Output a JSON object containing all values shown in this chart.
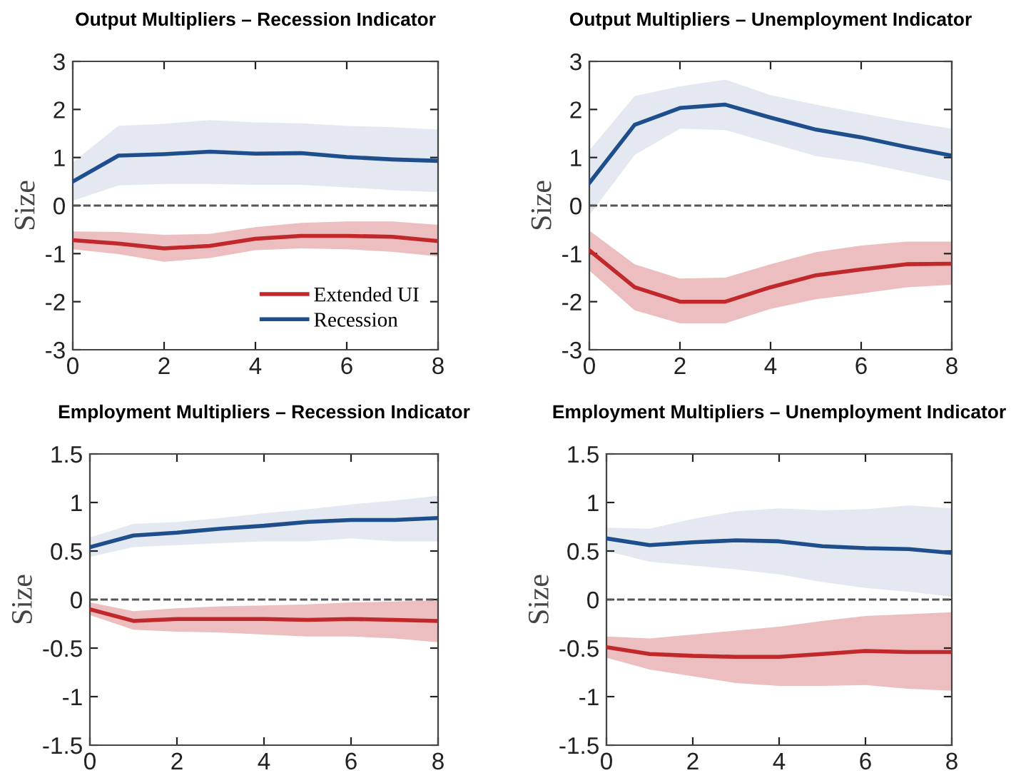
{
  "chart_data": [
    {
      "type": "line",
      "title": "Output Multipliers – Recession Indicator",
      "ylabel": "Size",
      "x": [
        0,
        1,
        2,
        3,
        4,
        5,
        6,
        7,
        8
      ],
      "xlim": [
        0,
        8
      ],
      "xticks": [
        0,
        2,
        4,
        6,
        8
      ],
      "ylim": [
        -3,
        3
      ],
      "yticks": [
        -3,
        -2,
        -1,
        0,
        1,
        2,
        3
      ],
      "grid": false,
      "legend": "bottom right",
      "marker": "none",
      "line_style": "solid",
      "ref_lines": [
        {
          "axis": "y",
          "value": 0,
          "color": "#555555",
          "line_style": "dashed"
        }
      ],
      "series": [
        {
          "name": "Extended UI",
          "color": "#c0282c",
          "values": [
            -0.72,
            -0.79,
            -0.89,
            -0.84,
            -0.69,
            -0.63,
            -0.63,
            -0.65,
            -0.74
          ],
          "upper": [
            -0.54,
            -0.55,
            -0.61,
            -0.59,
            -0.45,
            -0.36,
            -0.33,
            -0.33,
            -0.4
          ],
          "lower": [
            -0.91,
            -1.01,
            -1.17,
            -1.09,
            -0.93,
            -0.89,
            -0.91,
            -0.96,
            -1.06
          ]
        },
        {
          "name": "Recession",
          "color": "#1f4e8c",
          "values": [
            0.5,
            1.04,
            1.07,
            1.12,
            1.08,
            1.09,
            1.01,
            0.96,
            0.93
          ],
          "upper": [
            0.9,
            1.66,
            1.7,
            1.78,
            1.73,
            1.71,
            1.66,
            1.63,
            1.58
          ],
          "lower": [
            0.1,
            0.42,
            0.45,
            0.45,
            0.43,
            0.43,
            0.38,
            0.32,
            0.28
          ]
        }
      ]
    },
    {
      "type": "line",
      "title": "Output Multipliers – Unemployment Indicator",
      "ylabel": "Size",
      "x": [
        0,
        1,
        2,
        3,
        4,
        5,
        6,
        7,
        8
      ],
      "xlim": [
        0,
        8
      ],
      "xticks": [
        0,
        2,
        4,
        6,
        8
      ],
      "ylim": [
        -3,
        3
      ],
      "yticks": [
        -3,
        -2,
        -1,
        0,
        1,
        2,
        3
      ],
      "grid": false,
      "marker": "none",
      "line_style": "solid",
      "ref_lines": [
        {
          "axis": "y",
          "value": 0,
          "color": "#555555",
          "line_style": "dashed"
        }
      ],
      "series": [
        {
          "color": "#c0282c",
          "values": [
            -0.93,
            -1.7,
            -2.0,
            -2.0,
            -1.7,
            -1.45,
            -1.33,
            -1.22,
            -1.21
          ],
          "upper": [
            -0.52,
            -1.22,
            -1.52,
            -1.5,
            -1.22,
            -0.97,
            -0.83,
            -0.75,
            -0.75
          ],
          "lower": [
            -1.35,
            -2.18,
            -2.45,
            -2.45,
            -2.15,
            -1.95,
            -1.83,
            -1.7,
            -1.65
          ]
        },
        {
          "color": "#1f4e8c",
          "values": [
            0.47,
            1.68,
            2.03,
            2.1,
            1.83,
            1.58,
            1.42,
            1.22,
            1.04
          ],
          "upper": [
            1.15,
            2.28,
            2.48,
            2.62,
            2.3,
            2.1,
            1.92,
            1.75,
            1.6
          ],
          "lower": [
            -0.2,
            1.05,
            1.6,
            1.57,
            1.3,
            1.03,
            0.9,
            0.7,
            0.5
          ]
        }
      ]
    },
    {
      "type": "line",
      "title": "Employment Multipliers – Recession Indicator",
      "ylabel": "Size",
      "x": [
        0,
        1,
        2,
        3,
        4,
        5,
        6,
        7,
        8
      ],
      "xlim": [
        0,
        8
      ],
      "xticks": [
        0,
        2,
        4,
        6,
        8
      ],
      "ylim": [
        -1.5,
        1.5
      ],
      "yticks": [
        -1.5,
        -1,
        -0.5,
        0,
        0.5,
        1,
        1.5
      ],
      "grid": false,
      "marker": "none",
      "line_style": "solid",
      "ref_lines": [
        {
          "axis": "y",
          "value": 0,
          "color": "#555555",
          "line_style": "dashed"
        }
      ],
      "series": [
        {
          "color": "#c0282c",
          "values": [
            -0.1,
            -0.22,
            -0.2,
            -0.2,
            -0.2,
            -0.21,
            -0.2,
            -0.21,
            -0.22
          ],
          "upper": [
            -0.03,
            -0.12,
            -0.09,
            -0.07,
            -0.06,
            -0.05,
            -0.03,
            -0.02,
            -0.01
          ],
          "lower": [
            -0.16,
            -0.31,
            -0.33,
            -0.34,
            -0.36,
            -0.38,
            -0.38,
            -0.4,
            -0.44
          ]
        },
        {
          "color": "#1f4e8c",
          "values": [
            0.54,
            0.66,
            0.69,
            0.73,
            0.76,
            0.8,
            0.82,
            0.82,
            0.84
          ],
          "upper": [
            0.64,
            0.78,
            0.8,
            0.84,
            0.89,
            0.93,
            0.98,
            1.02,
            1.07
          ],
          "lower": [
            0.44,
            0.54,
            0.56,
            0.58,
            0.6,
            0.6,
            0.63,
            0.6,
            0.6
          ]
        }
      ]
    },
    {
      "type": "line",
      "title": "Employment Multipliers – Unemployment Indicator",
      "ylabel": "Size",
      "x": [
        0,
        1,
        2,
        3,
        4,
        5,
        6,
        7,
        8
      ],
      "xlim": [
        0,
        8
      ],
      "xticks": [
        0,
        2,
        4,
        6,
        8
      ],
      "ylim": [
        -1.5,
        1.5
      ],
      "yticks": [
        -1.5,
        -1,
        -0.5,
        0,
        0.5,
        1,
        1.5
      ],
      "grid": false,
      "marker": "none",
      "line_style": "solid",
      "ref_lines": [
        {
          "axis": "y",
          "value": 0,
          "color": "#555555",
          "line_style": "dashed"
        }
      ],
      "series": [
        {
          "color": "#c0282c",
          "values": [
            -0.49,
            -0.56,
            -0.58,
            -0.59,
            -0.59,
            -0.56,
            -0.53,
            -0.54,
            -0.54
          ],
          "upper": [
            -0.38,
            -0.4,
            -0.36,
            -0.32,
            -0.28,
            -0.22,
            -0.17,
            -0.15,
            -0.13
          ],
          "lower": [
            -0.6,
            -0.72,
            -0.79,
            -0.86,
            -0.89,
            -0.89,
            -0.88,
            -0.92,
            -0.94
          ]
        },
        {
          "color": "#1f4e8c",
          "values": [
            0.63,
            0.56,
            0.59,
            0.61,
            0.6,
            0.55,
            0.53,
            0.52,
            0.48
          ],
          "upper": [
            0.74,
            0.73,
            0.83,
            0.91,
            0.94,
            0.92,
            0.93,
            0.97,
            0.94
          ],
          "lower": [
            0.5,
            0.39,
            0.35,
            0.31,
            0.26,
            0.18,
            0.12,
            0.08,
            0.03
          ]
        }
      ]
    }
  ]
}
